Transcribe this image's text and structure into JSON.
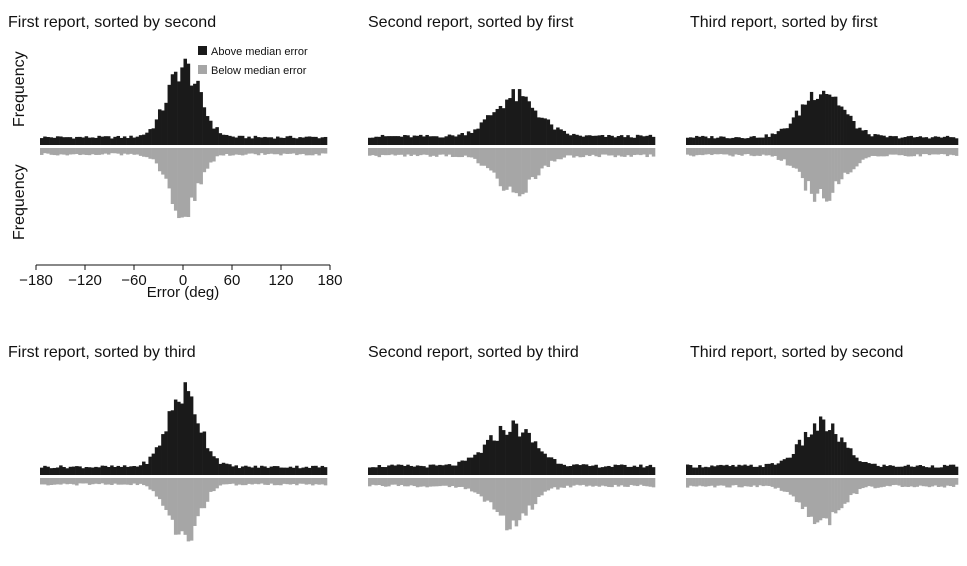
{
  "legend": {
    "above_label": "Above median error",
    "below_label": "Below median error",
    "above_color": "#1a1a1a",
    "below_color": "#a6a6a6"
  },
  "axes": {
    "x_label": "Error (deg)",
    "y_label_top": "Frequency",
    "y_label_bottom": "Frequency",
    "x_ticks": [
      -180,
      -120,
      -60,
      0,
      60,
      120,
      180
    ],
    "x_tick_labels": [
      "−180",
      "−120",
      "−60",
      "0",
      "60",
      "120",
      "180"
    ]
  },
  "chart_data": [
    {
      "type": "bar",
      "title": "First report, sorted by second",
      "xlabel": "Error (deg)",
      "ylabel": "Frequency",
      "xlim": [
        -180,
        180
      ],
      "histogram": {
        "peak_center": 0,
        "baseline": 0.1,
        "above_peak": 1.0,
        "above_width": 20,
        "below_peak": 1.0,
        "below_width": 18
      },
      "series": [
        {
          "name": "Above median error",
          "direction": "up"
        },
        {
          "name": "Below median error",
          "direction": "down"
        }
      ]
    },
    {
      "type": "bar",
      "title": "Second report, sorted by first",
      "xlim": [
        -180,
        180
      ],
      "histogram": {
        "peak_center": 5,
        "baseline": 0.14,
        "above_peak": 0.78,
        "above_width": 28,
        "below_peak": 0.8,
        "below_width": 24
      },
      "series": [
        {
          "name": "Above median error",
          "direction": "up"
        },
        {
          "name": "Below median error",
          "direction": "down"
        }
      ]
    },
    {
      "type": "bar",
      "title": "Third report, sorted by first",
      "xlim": [
        -180,
        180
      ],
      "histogram": {
        "peak_center": 0,
        "baseline": 0.12,
        "above_peak": 0.85,
        "above_width": 27,
        "below_peak": 0.82,
        "below_width": 26
      },
      "series": [
        {
          "name": "Above median error",
          "direction": "up"
        },
        {
          "name": "Below median error",
          "direction": "down"
        }
      ]
    },
    {
      "type": "bar",
      "title": "First report, sorted by third",
      "xlim": [
        -180,
        180
      ],
      "histogram": {
        "peak_center": 0,
        "baseline": 0.1,
        "above_peak": 1.0,
        "above_width": 20,
        "below_peak": 1.0,
        "below_width": 18
      },
      "series": [
        {
          "name": "Above median error",
          "direction": "up"
        },
        {
          "name": "Below median error",
          "direction": "down"
        }
      ]
    },
    {
      "type": "bar",
      "title": "Second report, sorted by third",
      "xlim": [
        -180,
        180
      ],
      "histogram": {
        "peak_center": 0,
        "baseline": 0.14,
        "above_peak": 0.75,
        "above_width": 28,
        "below_peak": 0.8,
        "below_width": 24
      },
      "series": [
        {
          "name": "Above median error",
          "direction": "up"
        },
        {
          "name": "Below median error",
          "direction": "down"
        }
      ]
    },
    {
      "type": "bar",
      "title": "Third report, sorted by second",
      "xlim": [
        -180,
        180
      ],
      "histogram": {
        "peak_center": 0,
        "baseline": 0.14,
        "above_peak": 0.78,
        "above_width": 26,
        "below_peak": 0.8,
        "below_width": 24
      },
      "series": [
        {
          "name": "Above median error",
          "direction": "up"
        },
        {
          "name": "Below median error",
          "direction": "down"
        }
      ]
    }
  ]
}
